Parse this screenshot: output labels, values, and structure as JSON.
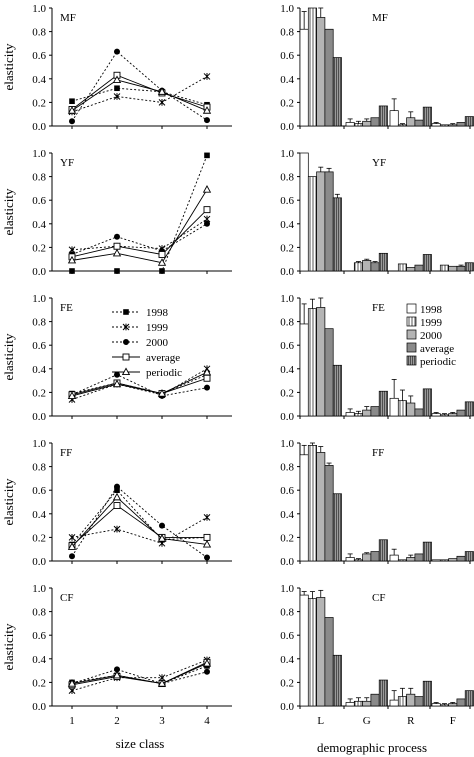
{
  "chart_data": {
    "figure_type": "multi-panel elasticity chart",
    "left": {
      "type": "line",
      "ylabel": "elasticity",
      "xlabel": "size class",
      "x": [
        1,
        2,
        3,
        4
      ],
      "x_tick_labels": [
        "1",
        "2",
        "3",
        "4"
      ],
      "ylim": [
        0,
        1.0
      ],
      "y_tick_labels": [
        "0.0",
        "0.2",
        "0.4",
        "0.6",
        "0.8",
        "1.0"
      ],
      "legend": {
        "panel": "FE",
        "placement": "top-center",
        "entries": [
          {
            "name": "1998",
            "marker": "filled-square",
            "dash": true
          },
          {
            "name": "1999",
            "marker": "star",
            "dash": true
          },
          {
            "name": "2000",
            "marker": "filled-circle",
            "dash": true
          },
          {
            "name": "average",
            "marker": "open-square",
            "dash": false
          },
          {
            "name": "periodic",
            "marker": "open-triangle",
            "dash": false
          }
        ]
      },
      "panels": [
        {
          "label": "MF",
          "series": [
            {
              "name": "1998",
              "values": [
                0.21,
                0.32,
                0.29,
                0.18
              ]
            },
            {
              "name": "1999",
              "values": [
                0.12,
                0.25,
                0.2,
                0.42
              ]
            },
            {
              "name": "2000",
              "values": [
                0.04,
                0.63,
                0.3,
                0.05
              ]
            },
            {
              "name": "average",
              "values": [
                0.14,
                0.43,
                0.28,
                0.16
              ]
            },
            {
              "name": "periodic",
              "values": [
                0.13,
                0.39,
                0.29,
                0.13
              ]
            }
          ]
        },
        {
          "label": "YF",
          "series": [
            {
              "name": "1998",
              "values": [
                0.0,
                0.0,
                0.0,
                0.98
              ]
            },
            {
              "name": "1999",
              "values": [
                0.18,
                0.21,
                0.19,
                0.44
              ]
            },
            {
              "name": "2000",
              "values": [
                0.14,
                0.29,
                0.17,
                0.4
              ]
            },
            {
              "name": "average",
              "values": [
                0.12,
                0.21,
                0.14,
                0.52
              ]
            },
            {
              "name": "periodic",
              "values": [
                0.09,
                0.15,
                0.07,
                0.69
              ]
            }
          ]
        },
        {
          "label": "FE",
          "series": [
            {
              "name": "1998",
              "values": [
                0.19,
                0.28,
                0.19,
                0.35
              ]
            },
            {
              "name": "1999",
              "values": [
                0.14,
                0.27,
                0.18,
                0.4
              ]
            },
            {
              "name": "2000",
              "values": [
                0.18,
                0.35,
                0.17,
                0.24
              ]
            },
            {
              "name": "average",
              "values": [
                0.18,
                0.28,
                0.19,
                0.32
              ]
            },
            {
              "name": "periodic",
              "values": [
                0.17,
                0.27,
                0.19,
                0.37
              ]
            }
          ]
        },
        {
          "label": "FF",
          "series": [
            {
              "name": "1998",
              "values": [
                0.14,
                0.6,
                0.18,
                0.2
              ]
            },
            {
              "name": "1999",
              "values": [
                0.2,
                0.27,
                0.15,
                0.37
              ]
            },
            {
              "name": "2000",
              "values": [
                0.04,
                0.63,
                0.3,
                0.03
              ]
            },
            {
              "name": "average",
              "values": [
                0.13,
                0.47,
                0.2,
                0.2
              ]
            },
            {
              "name": "periodic",
              "values": [
                0.12,
                0.54,
                0.19,
                0.14
              ]
            }
          ]
        },
        {
          "label": "CF",
          "series": [
            {
              "name": "1998",
              "values": [
                0.2,
                0.26,
                0.19,
                0.34
              ]
            },
            {
              "name": "1999",
              "values": [
                0.13,
                0.24,
                0.24,
                0.39
              ]
            },
            {
              "name": "2000",
              "values": [
                0.19,
                0.31,
                0.19,
                0.29
              ]
            },
            {
              "name": "average",
              "values": [
                0.18,
                0.25,
                0.19,
                0.37
              ]
            },
            {
              "name": "periodic",
              "values": [
                0.19,
                0.26,
                0.19,
                0.36
              ]
            }
          ]
        }
      ]
    },
    "right": {
      "type": "bar",
      "xlabel": "demographic process",
      "categories": [
        "L",
        "G",
        "R",
        "F"
      ],
      "ylim": [
        0,
        1.0
      ],
      "y_tick_labels": [
        "0.0",
        "0.2",
        "0.4",
        "0.6",
        "0.8",
        "1.0"
      ],
      "legend": {
        "panel": "FE",
        "placement": "top-right",
        "entries": [
          {
            "name": "1998",
            "pattern": "white"
          },
          {
            "name": "1999",
            "pattern": "vertical-lines"
          },
          {
            "name": "2000",
            "pattern": "gray"
          },
          {
            "name": "average",
            "pattern": "dark-gray"
          },
          {
            "name": "periodic",
            "pattern": "vertical-lines-dense"
          }
        ]
      },
      "panels": [
        {
          "label": "MF",
          "series": [
            {
              "name": "1998",
              "values": [
                0.82,
                0.03,
                0.13,
                0.02
              ],
              "error": [
                0.15,
                0.03,
                0.1,
                0.01
              ]
            },
            {
              "name": "1999",
              "values": [
                1.0,
                0.02,
                0.01,
                0.01
              ],
              "error": [
                0,
                0.02,
                0.01,
                0
              ]
            },
            {
              "name": "2000",
              "values": [
                0.92,
                0.04,
                0.07,
                0.01
              ],
              "error": [
                0.08,
                0.02,
                0.05,
                0.01
              ]
            },
            {
              "name": "average",
              "values": [
                0.82,
                0.07,
                0.05,
                0.03
              ],
              "error": [
                0,
                0,
                0,
                0
              ]
            },
            {
              "name": "periodic",
              "values": [
                0.58,
                0.17,
                0.16,
                0.08
              ],
              "error": [
                0,
                0,
                0,
                0
              ]
            }
          ]
        },
        {
          "label": "YF",
          "series": [
            {
              "name": "1998",
              "values": [
                1.0,
                0.0,
                0.0,
                0.0
              ],
              "error": [
                0,
                0,
                0,
                0
              ]
            },
            {
              "name": "1999",
              "values": [
                0.8,
                0.07,
                0.06,
                0.05
              ],
              "error": [
                0,
                0.01,
                0,
                0
              ]
            },
            {
              "name": "2000",
              "values": [
                0.84,
                0.09,
                0.03,
                0.04
              ],
              "error": [
                0.04,
                0.01,
                0,
                0
              ]
            },
            {
              "name": "average",
              "values": [
                0.84,
                0.07,
                0.05,
                0.04
              ],
              "error": [
                0.03,
                0.01,
                0,
                0.01
              ]
            },
            {
              "name": "periodic",
              "values": [
                0.62,
                0.15,
                0.14,
                0.07
              ],
              "error": [
                0.03,
                0,
                0,
                0
              ]
            }
          ]
        },
        {
          "label": "FE",
          "series": [
            {
              "name": "1998",
              "values": [
                0.78,
                0.03,
                0.15,
                0.02
              ],
              "error": [
                0.17,
                0.03,
                0.16,
                0.01
              ]
            },
            {
              "name": "1999",
              "values": [
                0.91,
                0.02,
                0.13,
                0.01
              ],
              "error": [
                0.08,
                0.02,
                0.09,
                0.01
              ]
            },
            {
              "name": "2000",
              "values": [
                0.92,
                0.05,
                0.11,
                0.02
              ],
              "error": [
                0.08,
                0.03,
                0.06,
                0.01
              ]
            },
            {
              "name": "average",
              "values": [
                0.74,
                0.08,
                0.06,
                0.05
              ],
              "error": [
                0,
                0,
                0,
                0
              ]
            },
            {
              "name": "periodic",
              "values": [
                0.43,
                0.21,
                0.23,
                0.12
              ],
              "error": [
                0,
                0,
                0,
                0
              ]
            }
          ]
        },
        {
          "label": "FF",
          "series": [
            {
              "name": "1998",
              "values": [
                0.9,
                0.03,
                0.05,
                0.01
              ],
              "error": [
                0.08,
                0.03,
                0.05,
                0
              ]
            },
            {
              "name": "1999",
              "values": [
                0.98,
                0.01,
                0.01,
                0.01
              ],
              "error": [
                0.02,
                0.01,
                0,
                0
              ]
            },
            {
              "name": "2000",
              "values": [
                0.92,
                0.06,
                0.03,
                0.02
              ],
              "error": [
                0.05,
                0.01,
                0.02,
                0
              ]
            },
            {
              "name": "average",
              "values": [
                0.81,
                0.08,
                0.06,
                0.04
              ],
              "error": [
                0.02,
                0,
                0,
                0
              ]
            },
            {
              "name": "periodic",
              "values": [
                0.57,
                0.18,
                0.16,
                0.08
              ],
              "error": [
                0,
                0,
                0,
                0
              ]
            }
          ]
        },
        {
          "label": "CF",
          "series": [
            {
              "name": "1998",
              "values": [
                0.94,
                0.03,
                0.05,
                0.02
              ],
              "error": [
                0.03,
                0.03,
                0.08,
                0.01
              ]
            },
            {
              "name": "1999",
              "values": [
                0.91,
                0.04,
                0.08,
                0.01
              ],
              "error": [
                0.06,
                0.03,
                0.07,
                0.01
              ]
            },
            {
              "name": "2000",
              "values": [
                0.92,
                0.04,
                0.1,
                0.02
              ],
              "error": [
                0.06,
                0.03,
                0.05,
                0.01
              ]
            },
            {
              "name": "average",
              "values": [
                0.75,
                0.1,
                0.08,
                0.06
              ],
              "error": [
                0,
                0,
                0,
                0
              ]
            },
            {
              "name": "periodic",
              "values": [
                0.43,
                0.22,
                0.21,
                0.13
              ],
              "error": [
                0,
                0,
                0,
                0
              ]
            }
          ]
        }
      ]
    }
  }
}
